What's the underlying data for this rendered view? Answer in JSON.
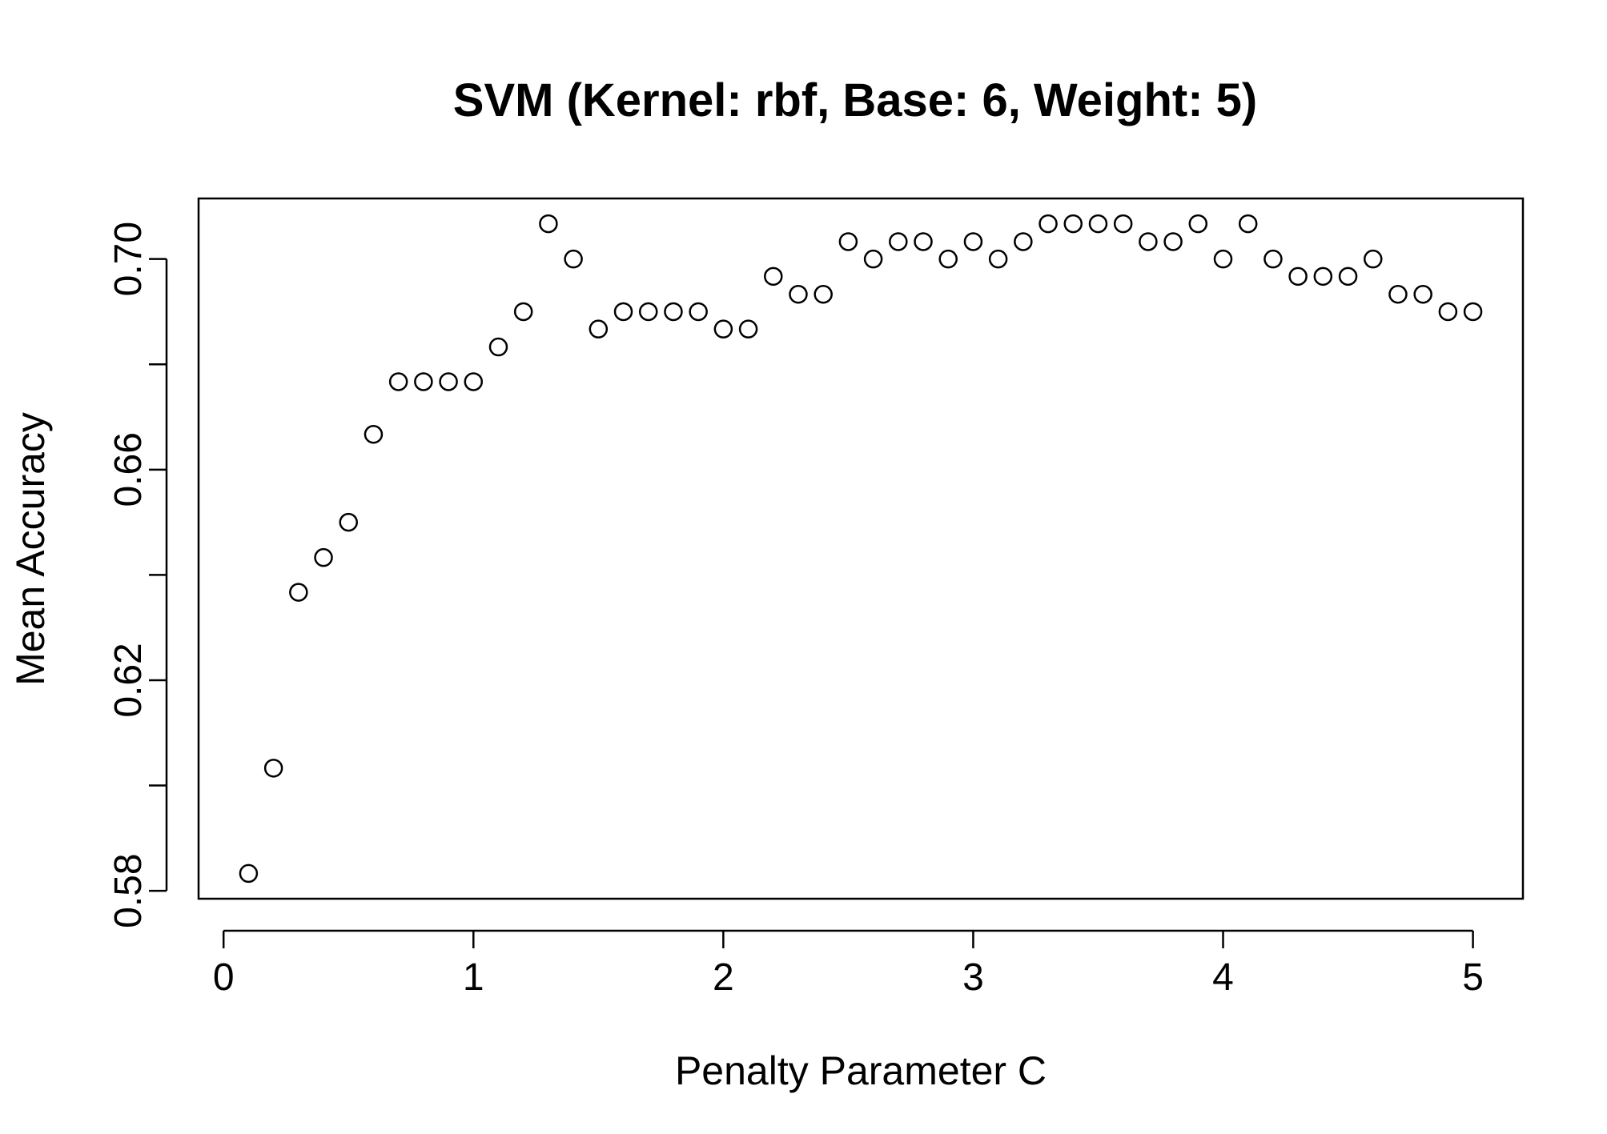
{
  "chart_data": {
    "type": "scatter",
    "title": "SVM (Kernel: rbf, Base: 6, Weight: 5)",
    "xlabel": "Penalty Parameter C",
    "ylabel": "Mean Accuracy",
    "xlim": [
      -0.1,
      5.2
    ],
    "ylim": [
      0.5785,
      0.7115
    ],
    "x_ticks": [
      0,
      1,
      2,
      3,
      4,
      5
    ],
    "x_tick_labels": [
      "0",
      "1",
      "2",
      "3",
      "4",
      "5"
    ],
    "y_ticks": [
      0.58,
      0.6,
      0.62,
      0.64,
      0.66,
      0.68,
      0.7
    ],
    "y_tick_labels": [
      "0.58",
      "",
      "0.62",
      "",
      "0.66",
      "",
      "0.70"
    ],
    "grid": false,
    "marker": "open-circle",
    "color": "#000000",
    "x": [
      0.1,
      0.2,
      0.3,
      0.4,
      0.5,
      0.6,
      0.7,
      0.8,
      0.9,
      1.0,
      1.1,
      1.2,
      1.3,
      1.4,
      1.5,
      1.6,
      1.7,
      1.8,
      1.9,
      2.0,
      2.1,
      2.2,
      2.3,
      2.4,
      2.5,
      2.6,
      2.7,
      2.8,
      2.9,
      3.0,
      3.1,
      3.2,
      3.3,
      3.4,
      3.5,
      3.6,
      3.7,
      3.8,
      3.9,
      4.0,
      4.1,
      4.2,
      4.3,
      4.4,
      4.5,
      4.6,
      4.7,
      4.8,
      4.9,
      5.0
    ],
    "y": [
      0.5833,
      0.6033,
      0.6367,
      0.6433,
      0.65,
      0.6667,
      0.6767,
      0.6767,
      0.6767,
      0.6767,
      0.6833,
      0.69,
      0.7067,
      0.7,
      0.6867,
      0.69,
      0.69,
      0.69,
      0.69,
      0.6867,
      0.6867,
      0.6967,
      0.6933,
      0.6933,
      0.7033,
      0.7,
      0.7033,
      0.7033,
      0.7,
      0.7033,
      0.7,
      0.7033,
      0.7067,
      0.7067,
      0.7067,
      0.7067,
      0.7033,
      0.7033,
      0.7067,
      0.7,
      0.7067,
      0.7,
      0.6967,
      0.6967,
      0.6967,
      0.7,
      0.6933,
      0.6933,
      0.69,
      0.69
    ]
  }
}
